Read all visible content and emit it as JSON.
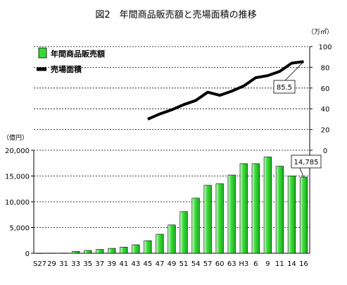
{
  "chart_data": {
    "type": "bar",
    "title": "図2　年間商品販売額と売場面積の推移",
    "categories": [
      "S27",
      "29",
      "31",
      "33",
      "35",
      "37",
      "39",
      "41",
      "43",
      "45",
      "47",
      "49",
      "51",
      "54",
      "57",
      "60",
      "63",
      "H3",
      "6",
      "9",
      "11",
      "14",
      "16"
    ],
    "colors": {
      "bar_fill": "#33dd33",
      "bar_highlight": "#ccffcc",
      "line": "#000000",
      "grid": "#000000"
    },
    "series": [
      {
        "name": "年間商品販売額",
        "chart": "bar",
        "axis": "left",
        "values": [
          20,
          30,
          40,
          380,
          550,
          750,
          950,
          1200,
          1650,
          2450,
          3700,
          5500,
          8100,
          10700,
          13200,
          13500,
          15200,
          17400,
          17400,
          18700,
          16900,
          15000,
          14785
        ]
      },
      {
        "name": "売場面積",
        "chart": "line",
        "axis": "right",
        "values": [
          null,
          null,
          null,
          null,
          null,
          null,
          null,
          null,
          null,
          30,
          35,
          39,
          44,
          48,
          56,
          53,
          57,
          62,
          70,
          72,
          76,
          84,
          85.5
        ]
      }
    ],
    "left_axis": {
      "unit": "（億円）",
      "min": 0,
      "max": 20000,
      "ticks": [
        0,
        5000,
        10000,
        15000,
        20000
      ],
      "tick_labels": [
        "0",
        "5,000",
        "10,000",
        "15,000",
        "20,000"
      ]
    },
    "right_axis": {
      "unit": "（万㎡）",
      "min": 0,
      "max": 100,
      "ticks": [
        0,
        20,
        40,
        60,
        80,
        100
      ],
      "tick_labels": [
        "0",
        "20",
        "40",
        "60",
        "80",
        "100"
      ]
    },
    "annotations": [
      {
        "series": "売場面積",
        "category": "16",
        "text": "85.5"
      },
      {
        "series": "年間商品販売額",
        "category": "16",
        "text": "14,785"
      }
    ],
    "legend": {
      "position": "top-left",
      "items": [
        {
          "label": "年間商品販売額",
          "marker": "bar"
        },
        {
          "label": "売場面積",
          "marker": "line"
        }
      ]
    },
    "grid": true
  }
}
